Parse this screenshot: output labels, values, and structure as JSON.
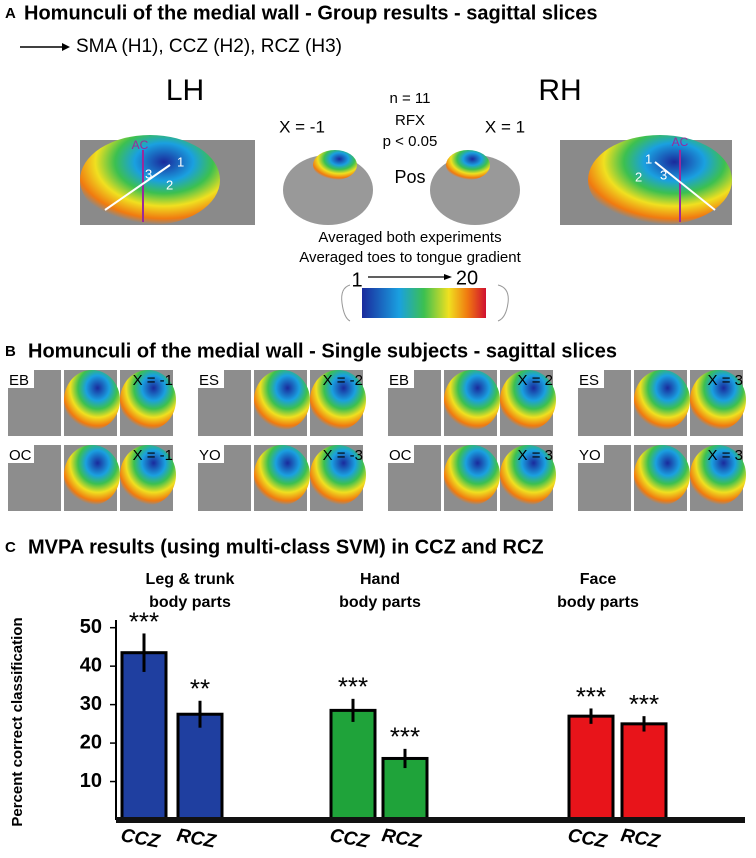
{
  "panel_a": {
    "letter": "A",
    "title": "Homunculi of the medial wall - Group results - sagittal slices",
    "legend": "SMA (H1), CCZ (H2), RCZ (H3)",
    "lh": "LH",
    "rh": "RH",
    "x_left": "X = -1",
    "x_right": "X = 1",
    "stats": [
      "n = 11",
      "RFX",
      "p < 0.05"
    ],
    "pos": "Pos",
    "ac": "AC",
    "arrow_numbers": [
      "1",
      "2",
      "3"
    ],
    "caption": [
      "Averaged both experiments",
      "Averaged toes to tongue gradient"
    ],
    "scale_min": "1",
    "scale_max": "20"
  },
  "panel_b": {
    "letter": "B",
    "title": "Homunculi of the medial wall - Single subjects - sagittal slices",
    "subjects": [
      {
        "label": "EB",
        "x": "X = -1"
      },
      {
        "label": "ES",
        "x": "X = -2"
      },
      {
        "label": "EB",
        "x": "X = 2"
      },
      {
        "label": "ES",
        "x": "X = 3"
      },
      {
        "label": "OC",
        "x": "X = -1"
      },
      {
        "label": "YO",
        "x": "X = -3"
      },
      {
        "label": "OC",
        "x": "X = 3"
      },
      {
        "label": "YO",
        "x": "X = 3"
      }
    ]
  },
  "chart_data": {
    "type": "bar",
    "letter": "C",
    "title": "MVPA results (using multi-class SVM) in CCZ and RCZ",
    "y_label": "Percent correct classification",
    "groups": [
      [
        "Leg & trunk",
        "body parts"
      ],
      [
        "Hand",
        "body parts"
      ],
      [
        "Face",
        "body parts"
      ]
    ],
    "categories": [
      "CCZ",
      "RCZ",
      "CCZ",
      "RCZ",
      "CCZ",
      "RCZ"
    ],
    "values": [
      43.5,
      27.5,
      28.5,
      16,
      27,
      25
    ],
    "errors": [
      5,
      3.5,
      3,
      2.5,
      2,
      2
    ],
    "value_labels": [
      "***",
      "**",
      "***",
      "***",
      "***",
      "***"
    ],
    "colors": [
      "#1f3fa0",
      "#1f3fa0",
      "#1fa33a",
      "#1fa33a",
      "#e8141a",
      "#e8141a"
    ],
    "ylim": [
      0,
      52
    ],
    "yticks": [
      10,
      20,
      30,
      40,
      50
    ]
  }
}
